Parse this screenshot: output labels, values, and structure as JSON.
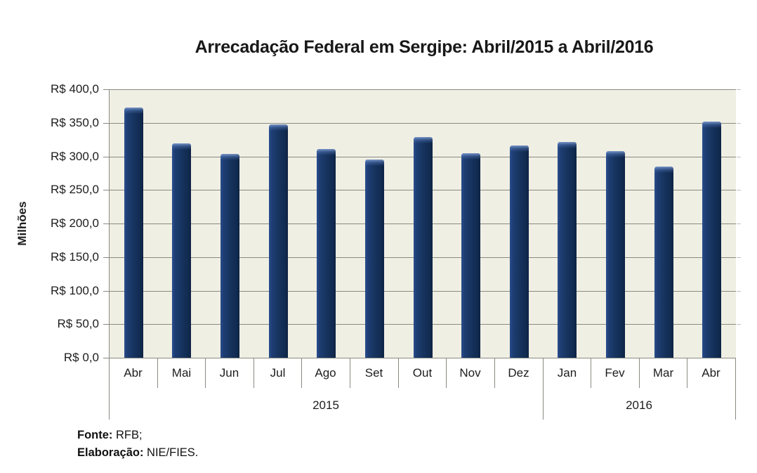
{
  "chart_data": {
    "type": "bar",
    "title": "Arrecadação Federal em Sergipe: Abril/2015 a Abril/2016",
    "ylabel": "Milhões",
    "xlabel": "",
    "categories": [
      "Abr",
      "Mai",
      "Jun",
      "Jul",
      "Ago",
      "Set",
      "Out",
      "Nov",
      "Dez",
      "Jan",
      "Fev",
      "Mar",
      "Abr"
    ],
    "year_groups": [
      {
        "label": "2015",
        "months": 9
      },
      {
        "label": "2016",
        "months": 4
      }
    ],
    "values": [
      373,
      319,
      304,
      348,
      311,
      295,
      329,
      305,
      316,
      322,
      308,
      285,
      352
    ],
    "ylim": [
      0,
      400
    ],
    "y_step": 50,
    "y_tick_labels": [
      "R$ 0,0",
      "R$ 50,0",
      "R$ 100,0",
      "R$ 150,0",
      "R$ 200,0",
      "R$ 250,0",
      "R$ 300,0",
      "R$ 350,0",
      "R$ 400,0"
    ],
    "grid": true,
    "legend": "none",
    "colors": {
      "bar": "#17375E",
      "plot_background": "#F0EFE4",
      "gridline": "#8A8A82",
      "text": "#1D1D1D"
    }
  },
  "footer": {
    "fonte_label": "Fonte:",
    "fonte_value": "RFB;",
    "elaboracao_label": "Elaboração:",
    "elaboracao_value": "NIE/FIES."
  }
}
